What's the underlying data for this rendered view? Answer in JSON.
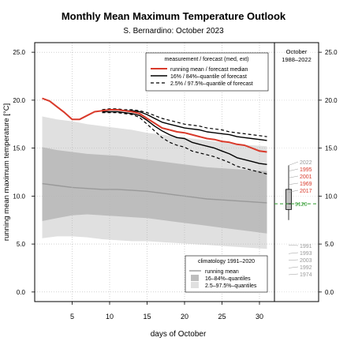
{
  "chart_data": {
    "type": "line",
    "title": "Monthly Mean Maximum Temperature Outlook",
    "subtitle": "S. Bernardino: October 2023",
    "xlabel": "days of October",
    "ylabel": "running mean maximum temperature [°C]",
    "xlim": [
      0,
      32
    ],
    "ylim": [
      -1,
      26
    ],
    "x_ticks": [
      5,
      10,
      15,
      20,
      25,
      30
    ],
    "y_ticks": [
      0.0,
      5.0,
      10.0,
      15.0,
      20.0,
      25.0
    ],
    "y_tick_labels": [
      "0.0",
      "5.0",
      "10.0",
      "15.0",
      "20.0",
      "25.0"
    ],
    "grid": true,
    "measurement_legend": {
      "title": "measurement / forecast (med, ext)",
      "items": [
        {
          "label": "running mean / forecast median",
          "style": "solid",
          "color": "#d93a2b"
        },
        {
          "label": "16% / 84%–quantile of forecast",
          "style": "solid",
          "color": "#000000"
        },
        {
          "label": "2.5% / 97.5%–quantile of forecast",
          "style": "dashed",
          "color": "#000000"
        }
      ]
    },
    "climatology_legend": {
      "title": "climatology 1991–2020",
      "items": [
        {
          "label": "running mean",
          "kind": "line",
          "color": "#999999"
        },
        {
          "label": "16–84%–quantiles",
          "kind": "box",
          "color": "#bdbdbd"
        },
        {
          "label": "2.5–97.5%–quantiles",
          "kind": "box",
          "color": "#e0e0e0"
        }
      ]
    },
    "series": {
      "running_mean_forecast_median": {
        "x": [
          1,
          2,
          3,
          4,
          5,
          6,
          7,
          8,
          9,
          10,
          11,
          12,
          13,
          14,
          15,
          16,
          17,
          18,
          19,
          20,
          21,
          22,
          23,
          24,
          25,
          26,
          27,
          28,
          29,
          30,
          31
        ],
        "y": [
          20.2,
          19.9,
          19.3,
          18.7,
          18.0,
          18.0,
          18.4,
          18.8,
          18.9,
          19.0,
          19.0,
          18.9,
          18.8,
          18.6,
          18.1,
          17.6,
          17.1,
          16.9,
          16.7,
          16.6,
          16.4,
          16.2,
          16.0,
          15.9,
          15.7,
          15.6,
          15.4,
          15.3,
          15.0,
          14.7,
          14.6
        ]
      },
      "forecast_q84": {
        "x": [
          9,
          10,
          11,
          12,
          13,
          14,
          15,
          16,
          17,
          18,
          19,
          20,
          21,
          22,
          23,
          24,
          25,
          26,
          27,
          28,
          29,
          30,
          31
        ],
        "y": [
          18.9,
          19.0,
          19.0,
          18.9,
          18.9,
          18.8,
          18.5,
          18.1,
          17.7,
          17.5,
          17.3,
          17.1,
          17.0,
          16.9,
          16.7,
          16.6,
          16.5,
          16.4,
          16.2,
          16.1,
          16.0,
          15.9,
          15.8
        ]
      },
      "forecast_q16": {
        "x": [
          9,
          10,
          11,
          12,
          13,
          14,
          15,
          16,
          17,
          18,
          19,
          20,
          21,
          22,
          23,
          24,
          25,
          26,
          27,
          28,
          29,
          30,
          31
        ],
        "y": [
          18.8,
          18.8,
          18.8,
          18.7,
          18.6,
          18.4,
          17.9,
          17.3,
          16.8,
          16.4,
          16.1,
          16.0,
          15.6,
          15.4,
          15.2,
          15.0,
          14.7,
          14.4,
          14.0,
          13.8,
          13.6,
          13.4,
          13.3
        ]
      },
      "forecast_q97_5": {
        "x": [
          9,
          10,
          11,
          12,
          13,
          14,
          15,
          16,
          17,
          18,
          19,
          20,
          21,
          22,
          23,
          24,
          25,
          26,
          27,
          28,
          29,
          30,
          31
        ],
        "y": [
          19.0,
          19.1,
          19.1,
          19.0,
          19.0,
          18.9,
          18.7,
          18.4,
          18.1,
          17.9,
          17.7,
          17.5,
          17.4,
          17.3,
          17.1,
          17.0,
          16.9,
          16.7,
          16.6,
          16.5,
          16.4,
          16.3,
          16.2
        ]
      },
      "forecast_q2_5": {
        "x": [
          9,
          10,
          11,
          12,
          13,
          14,
          15,
          16,
          17,
          18,
          19,
          20,
          21,
          22,
          23,
          24,
          25,
          26,
          27,
          28,
          29,
          30,
          31
        ],
        "y": [
          18.7,
          18.7,
          18.7,
          18.6,
          18.5,
          18.2,
          17.5,
          16.8,
          16.1,
          15.6,
          15.3,
          15.1,
          14.7,
          14.5,
          14.3,
          14.1,
          13.8,
          13.5,
          13.1,
          12.9,
          12.7,
          12.5,
          12.3
        ]
      },
      "climatology_running_mean": {
        "x": [
          1,
          3,
          5,
          7,
          9,
          11,
          13,
          15,
          17,
          19,
          21,
          23,
          25,
          27,
          29,
          31
        ],
        "y": [
          11.3,
          11.1,
          10.9,
          10.8,
          10.7,
          10.7,
          10.6,
          10.5,
          10.3,
          10.1,
          9.9,
          9.7,
          9.6,
          9.5,
          9.4,
          9.3
        ]
      },
      "climatology_q16_84": {
        "x": [
          1,
          3,
          5,
          7,
          9,
          11,
          13,
          15,
          17,
          19,
          21,
          23,
          25,
          27,
          29,
          31
        ],
        "upper": [
          15.1,
          14.8,
          14.6,
          14.4,
          14.3,
          14.2,
          14.0,
          13.8,
          13.6,
          13.4,
          13.2,
          13.0,
          12.9,
          12.8,
          12.7,
          12.6
        ],
        "lower": [
          7.4,
          7.7,
          8.0,
          8.1,
          8.0,
          7.9,
          7.8,
          7.7,
          7.5,
          7.3,
          7.1,
          6.9,
          6.7,
          6.5,
          6.3,
          6.1
        ]
      },
      "climatology_q2_5_97_5": {
        "x": [
          1,
          3,
          5,
          7,
          9,
          11,
          13,
          15,
          17,
          19,
          21,
          23,
          25,
          27,
          29,
          31
        ],
        "upper": [
          18.3,
          18.0,
          17.8,
          17.5,
          17.3,
          17.1,
          16.9,
          16.6,
          16.4,
          16.2,
          16.0,
          15.8,
          15.6,
          15.4,
          15.3,
          15.2
        ],
        "lower": [
          5.6,
          5.8,
          5.8,
          5.7,
          5.5,
          5.4,
          5.3,
          5.3,
          5.2,
          5.1,
          5.0,
          4.9,
          4.8,
          4.7,
          4.6,
          4.5
        ]
      }
    },
    "side_panel": {
      "title_line1": "October",
      "title_line2": "1988–2022",
      "box": {
        "q2_5": 7.5,
        "q16": 8.6,
        "median": 9.2,
        "q84": 10.7,
        "q97_5": 13.2
      },
      "current_value": {
        "label": "9120",
        "y": 9.2
      },
      "warm_years": [
        {
          "year": "2022",
          "y": 13.2
        },
        {
          "year": "1995",
          "y": 12.6
        },
        {
          "year": "2001",
          "y": 11.9
        },
        {
          "year": "1969",
          "y": 11.2
        },
        {
          "year": "2017",
          "y": 10.4
        }
      ],
      "cold_years": [
        {
          "year": "1991",
          "y": 4.9
        },
        {
          "year": "1993",
          "y": 4.0
        },
        {
          "year": "2003",
          "y": 3.3
        },
        {
          "year": "1992",
          "y": 2.5
        },
        {
          "year": "1974",
          "y": 1.8
        }
      ]
    }
  }
}
